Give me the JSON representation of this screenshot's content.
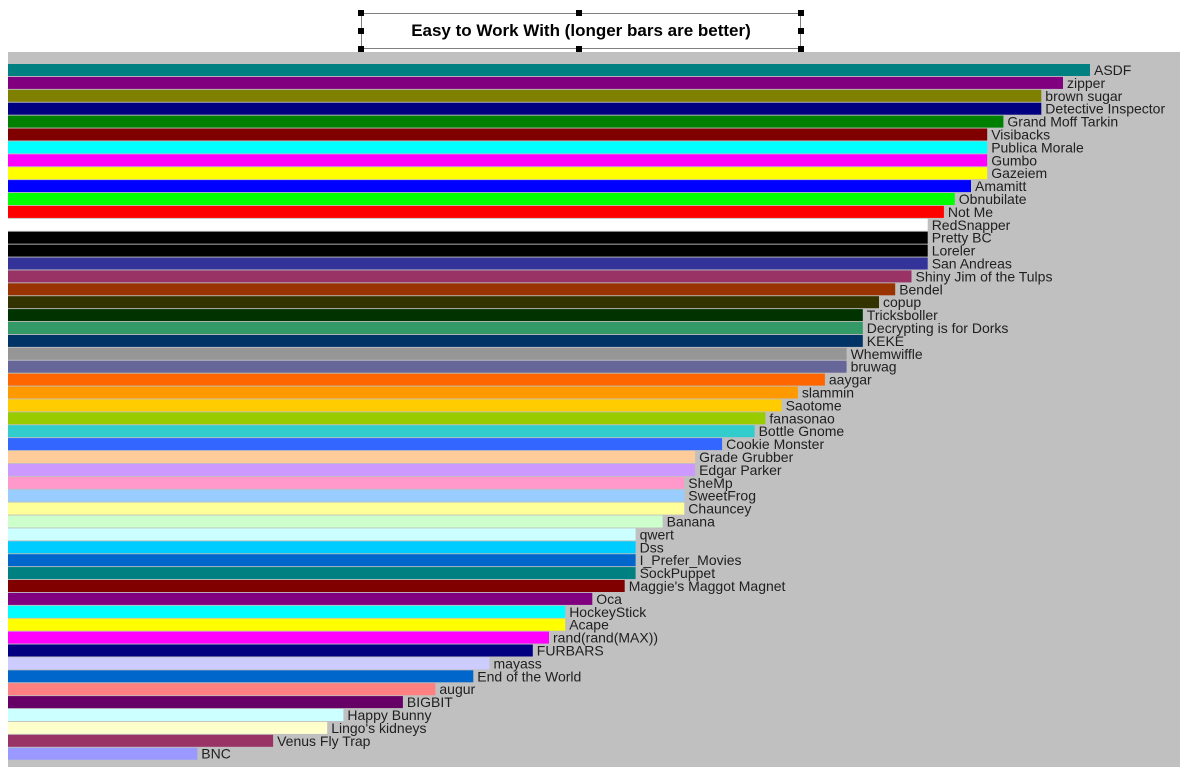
{
  "chart_data": {
    "type": "bar",
    "orientation": "horizontal",
    "title": "Easy to Work With (longer bars are better)",
    "xlabel": "",
    "ylabel": "",
    "xlim": [
      0,
      100
    ],
    "grid": false,
    "legend": "none",
    "axes_visible": false,
    "background": "#c0c0c0",
    "bars": [
      {
        "label": "ASDF",
        "value": 100,
        "color": "#008080"
      },
      {
        "label": "zipper",
        "value": 97.5,
        "color": "#800080"
      },
      {
        "label": "brown sugar",
        "value": 95.5,
        "color": "#808000"
      },
      {
        "label": "Detective Inspector",
        "value": 95.5,
        "color": "#000080"
      },
      {
        "label": "Grand Moff Tarkin",
        "value": 92,
        "color": "#008000"
      },
      {
        "label": "Visibacks",
        "value": 90.5,
        "color": "#800000"
      },
      {
        "label": "Publica Morale",
        "value": 90.5,
        "color": "#00ffff"
      },
      {
        "label": "Gumbo",
        "value": 90.5,
        "color": "#ff00ff"
      },
      {
        "label": "Gazeiem",
        "value": 90.5,
        "color": "#ffff00"
      },
      {
        "label": "Amamitt",
        "value": 89,
        "color": "#0000ff"
      },
      {
        "label": "Obnubilate",
        "value": 87.5,
        "color": "#00ff00"
      },
      {
        "label": "Not Me",
        "value": 86.5,
        "color": "#ff0000"
      },
      {
        "label": "RedSnapper",
        "value": 85,
        "color": "#ffffff"
      },
      {
        "label": "Pretty BC",
        "value": 85,
        "color": "#000000"
      },
      {
        "label": "Loreler",
        "value": 85,
        "color": "#000000"
      },
      {
        "label": "San Andreas",
        "value": 85,
        "color": "#333399"
      },
      {
        "label": "Shiny Jim of the Tulps",
        "value": 83.5,
        "color": "#993366"
      },
      {
        "label": "Bendel",
        "value": 82,
        "color": "#993300"
      },
      {
        "label": "copup",
        "value": 80.5,
        "color": "#333300"
      },
      {
        "label": "Tricksboller",
        "value": 79,
        "color": "#003300"
      },
      {
        "label": "Decrypting is for Dorks",
        "value": 79,
        "color": "#339966"
      },
      {
        "label": "KEKE",
        "value": 79,
        "color": "#003366"
      },
      {
        "label": "Whemwiffle",
        "value": 77.5,
        "color": "#969696"
      },
      {
        "label": "bruwag",
        "value": 77.5,
        "color": "#666699"
      },
      {
        "label": "aaygar",
        "value": 75.5,
        "color": "#ff6600"
      },
      {
        "label": "slammin",
        "value": 73,
        "color": "#ff9900"
      },
      {
        "label": "Saotome",
        "value": 71.5,
        "color": "#ffcc00"
      },
      {
        "label": "fanasonao",
        "value": 70,
        "color": "#99cc00"
      },
      {
        "label": "Bottle Gnome",
        "value": 69,
        "color": "#33cccc"
      },
      {
        "label": "Cookie Monster",
        "value": 66,
        "color": "#3366ff"
      },
      {
        "label": "Grade Grubber",
        "value": 63.5,
        "color": "#ffcc99"
      },
      {
        "label": "Edgar Parker",
        "value": 63.5,
        "color": "#cc99ff"
      },
      {
        "label": "SheMp",
        "value": 62.5,
        "color": "#ff99cc"
      },
      {
        "label": "SweetFrog",
        "value": 62.5,
        "color": "#99ccff"
      },
      {
        "label": "Chauncey",
        "value": 62.5,
        "color": "#ffff99"
      },
      {
        "label": "Banana",
        "value": 60.5,
        "color": "#ccffcc"
      },
      {
        "label": "qwert",
        "value": 58,
        "color": "#ccffff"
      },
      {
        "label": "Dss",
        "value": 58,
        "color": "#00ccff"
      },
      {
        "label": "I_Prefer_Movies",
        "value": 58,
        "color": "#0066cc"
      },
      {
        "label": "SockPuppet",
        "value": 58,
        "color": "#008080"
      },
      {
        "label": "Maggie's Maggot Magnet",
        "value": 57,
        "color": "#800000"
      },
      {
        "label": "Oca",
        "value": 54,
        "color": "#800080"
      },
      {
        "label": "HockeyStick",
        "value": 51.5,
        "color": "#00ffff"
      },
      {
        "label": "Acape",
        "value": 51.5,
        "color": "#ffff00"
      },
      {
        "label": "rand(rand(MAX))",
        "value": 50,
        "color": "#ff00ff"
      },
      {
        "label": "FURBARS",
        "value": 48.5,
        "color": "#000080"
      },
      {
        "label": "mayass",
        "value": 44.5,
        "color": "#ccccff"
      },
      {
        "label": "End of the World",
        "value": 43,
        "color": "#0066cc"
      },
      {
        "label": "augur",
        "value": 39.5,
        "color": "#ff8080"
      },
      {
        "label": "BIGBIT",
        "value": 36.5,
        "color": "#660066"
      },
      {
        "label": "Happy Bunny",
        "value": 31,
        "color": "#ccffff"
      },
      {
        "label": "Lingo's kidneys",
        "value": 29.5,
        "color": "#ffffcc"
      },
      {
        "label": "Venus Fly Trap",
        "value": 24.5,
        "color": "#993366"
      },
      {
        "label": "BNC",
        "value": 17.5,
        "color": "#9999ff"
      }
    ]
  }
}
